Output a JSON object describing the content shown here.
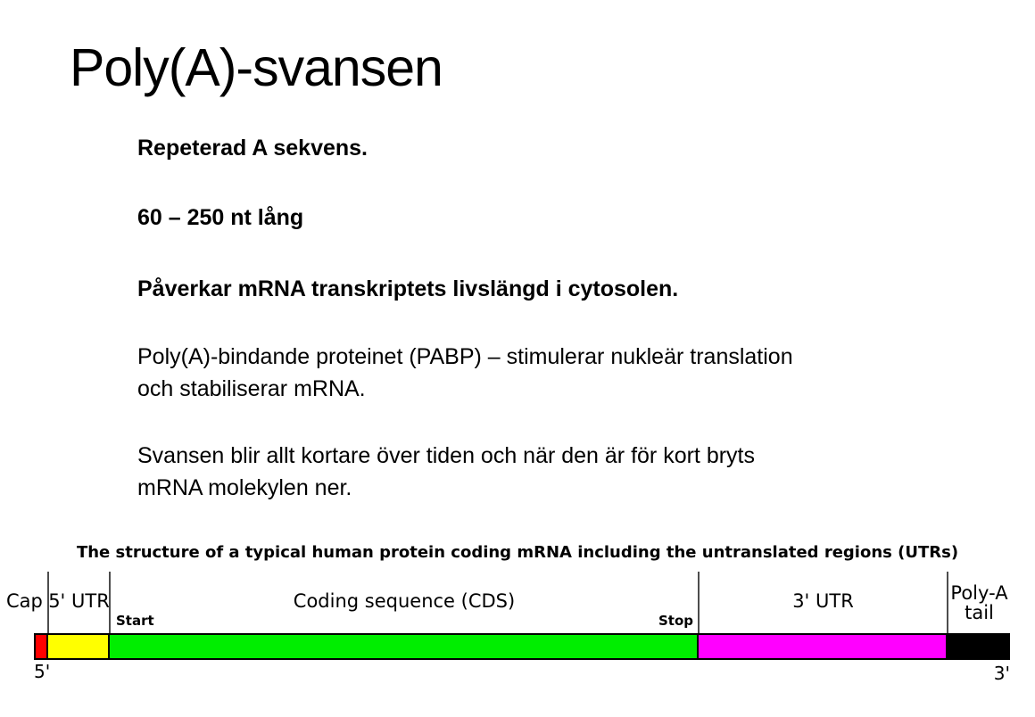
{
  "slide": {
    "title": "Poly(A)-svansen",
    "paragraphs": [
      {
        "style": "bold",
        "lines": [
          "Repeterad A sekvens."
        ]
      },
      {
        "style": "bold",
        "lines": [
          "60 – 250 nt lång"
        ]
      },
      {
        "style": "bold",
        "lines": [
          "Påverkar mRNA transkriptets livslängd i cytosolen."
        ]
      },
      {
        "style": "regular",
        "lines": [
          "Poly(A)-bindande proteinet (PABP) – stimulerar nukleär translation",
          "och stabiliserar mRNA."
        ]
      },
      {
        "style": "regular",
        "lines": [
          "Svansen blir allt kortare över tiden och när den är för kort bryts",
          "mRNA molekylen ner."
        ]
      }
    ]
  },
  "diagram": {
    "caption": "The structure of a typical human protein coding mRNA including the untranslated regions (UTRs)",
    "labels": {
      "cap": "Cap",
      "utr5": "5' UTR",
      "start": "Start",
      "cds": "Coding sequence (CDS)",
      "stop": "Stop",
      "utr3": "3' UTR",
      "polya_line1": "Poly-A",
      "polya_line2": "tail",
      "five_prime": "5'",
      "three_prime": "3'"
    },
    "segments": [
      {
        "name": "cap",
        "color": "#ff0000"
      },
      {
        "name": "5-utr",
        "color": "#ffff00"
      },
      {
        "name": "coding-sequence",
        "color": "#00ee00"
      },
      {
        "name": "3-utr",
        "color": "#ff00ff"
      },
      {
        "name": "poly-a-tail",
        "color": "#000000"
      }
    ]
  }
}
